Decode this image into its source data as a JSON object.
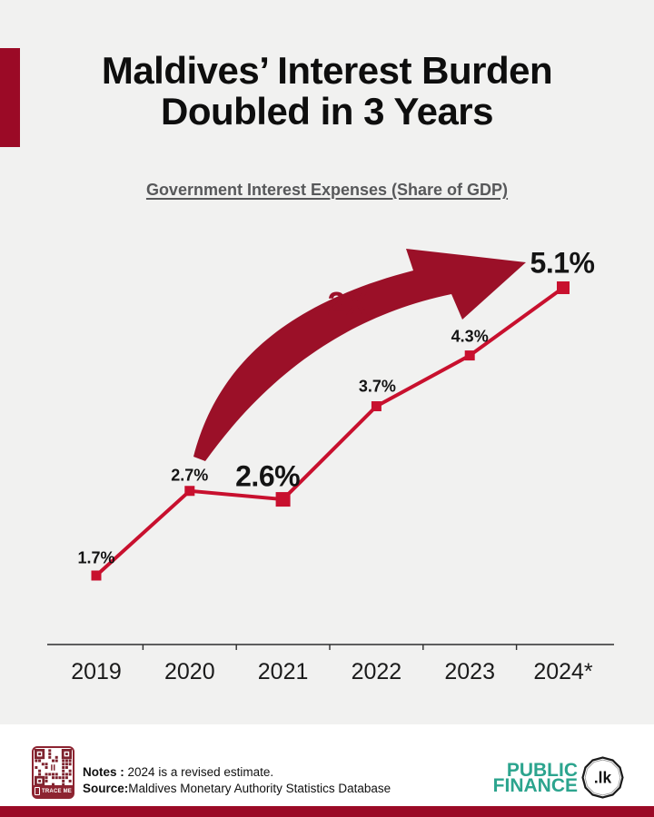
{
  "page": {
    "background": "#F1F1F0",
    "footer_background": "#FFFFFF",
    "accent_maroon": "#9B0A26"
  },
  "header": {
    "title_line1": "Maldives’ Interest Burden",
    "title_line2": "Doubled in 3 Years",
    "subtitle": "Government Interest Expenses (Share of GDP)"
  },
  "chart_data": {
    "type": "line",
    "title": "Government Interest Expenses (Share of GDP)",
    "categories": [
      "2019",
      "2020",
      "2021",
      "2022",
      "2023",
      "2024*"
    ],
    "values": [
      1.7,
      2.7,
      2.6,
      3.7,
      4.3,
      5.1
    ],
    "point_labels": [
      "1.7%",
      "2.7%",
      "2.6%",
      "3.7%",
      "4.3%",
      "5.1%"
    ],
    "emphasized_points": [
      2,
      5
    ],
    "annotation": "2X",
    "xlabel": "",
    "ylabel": "",
    "ylim": [
      1,
      6
    ],
    "grid": false,
    "legend": false,
    "line_color": "#C8102E",
    "marker_color": "#C8102E",
    "annotation_color": "#9B1028",
    "axis_color": "#2E2E2E"
  },
  "footer": {
    "qr_label": "TRACE ME",
    "notes_label": "Notes :",
    "notes_text": "2024 is a revised estimate.",
    "source_label": "Source:",
    "source_text": "Maldives Monetary Authority Statistics Database",
    "logo_line1": "PUBLIC",
    "logo_line2": "FINANCE",
    "logo_badge": ".lk",
    "logo_color": "#2CA48E",
    "qr_color": "#7E232E"
  }
}
